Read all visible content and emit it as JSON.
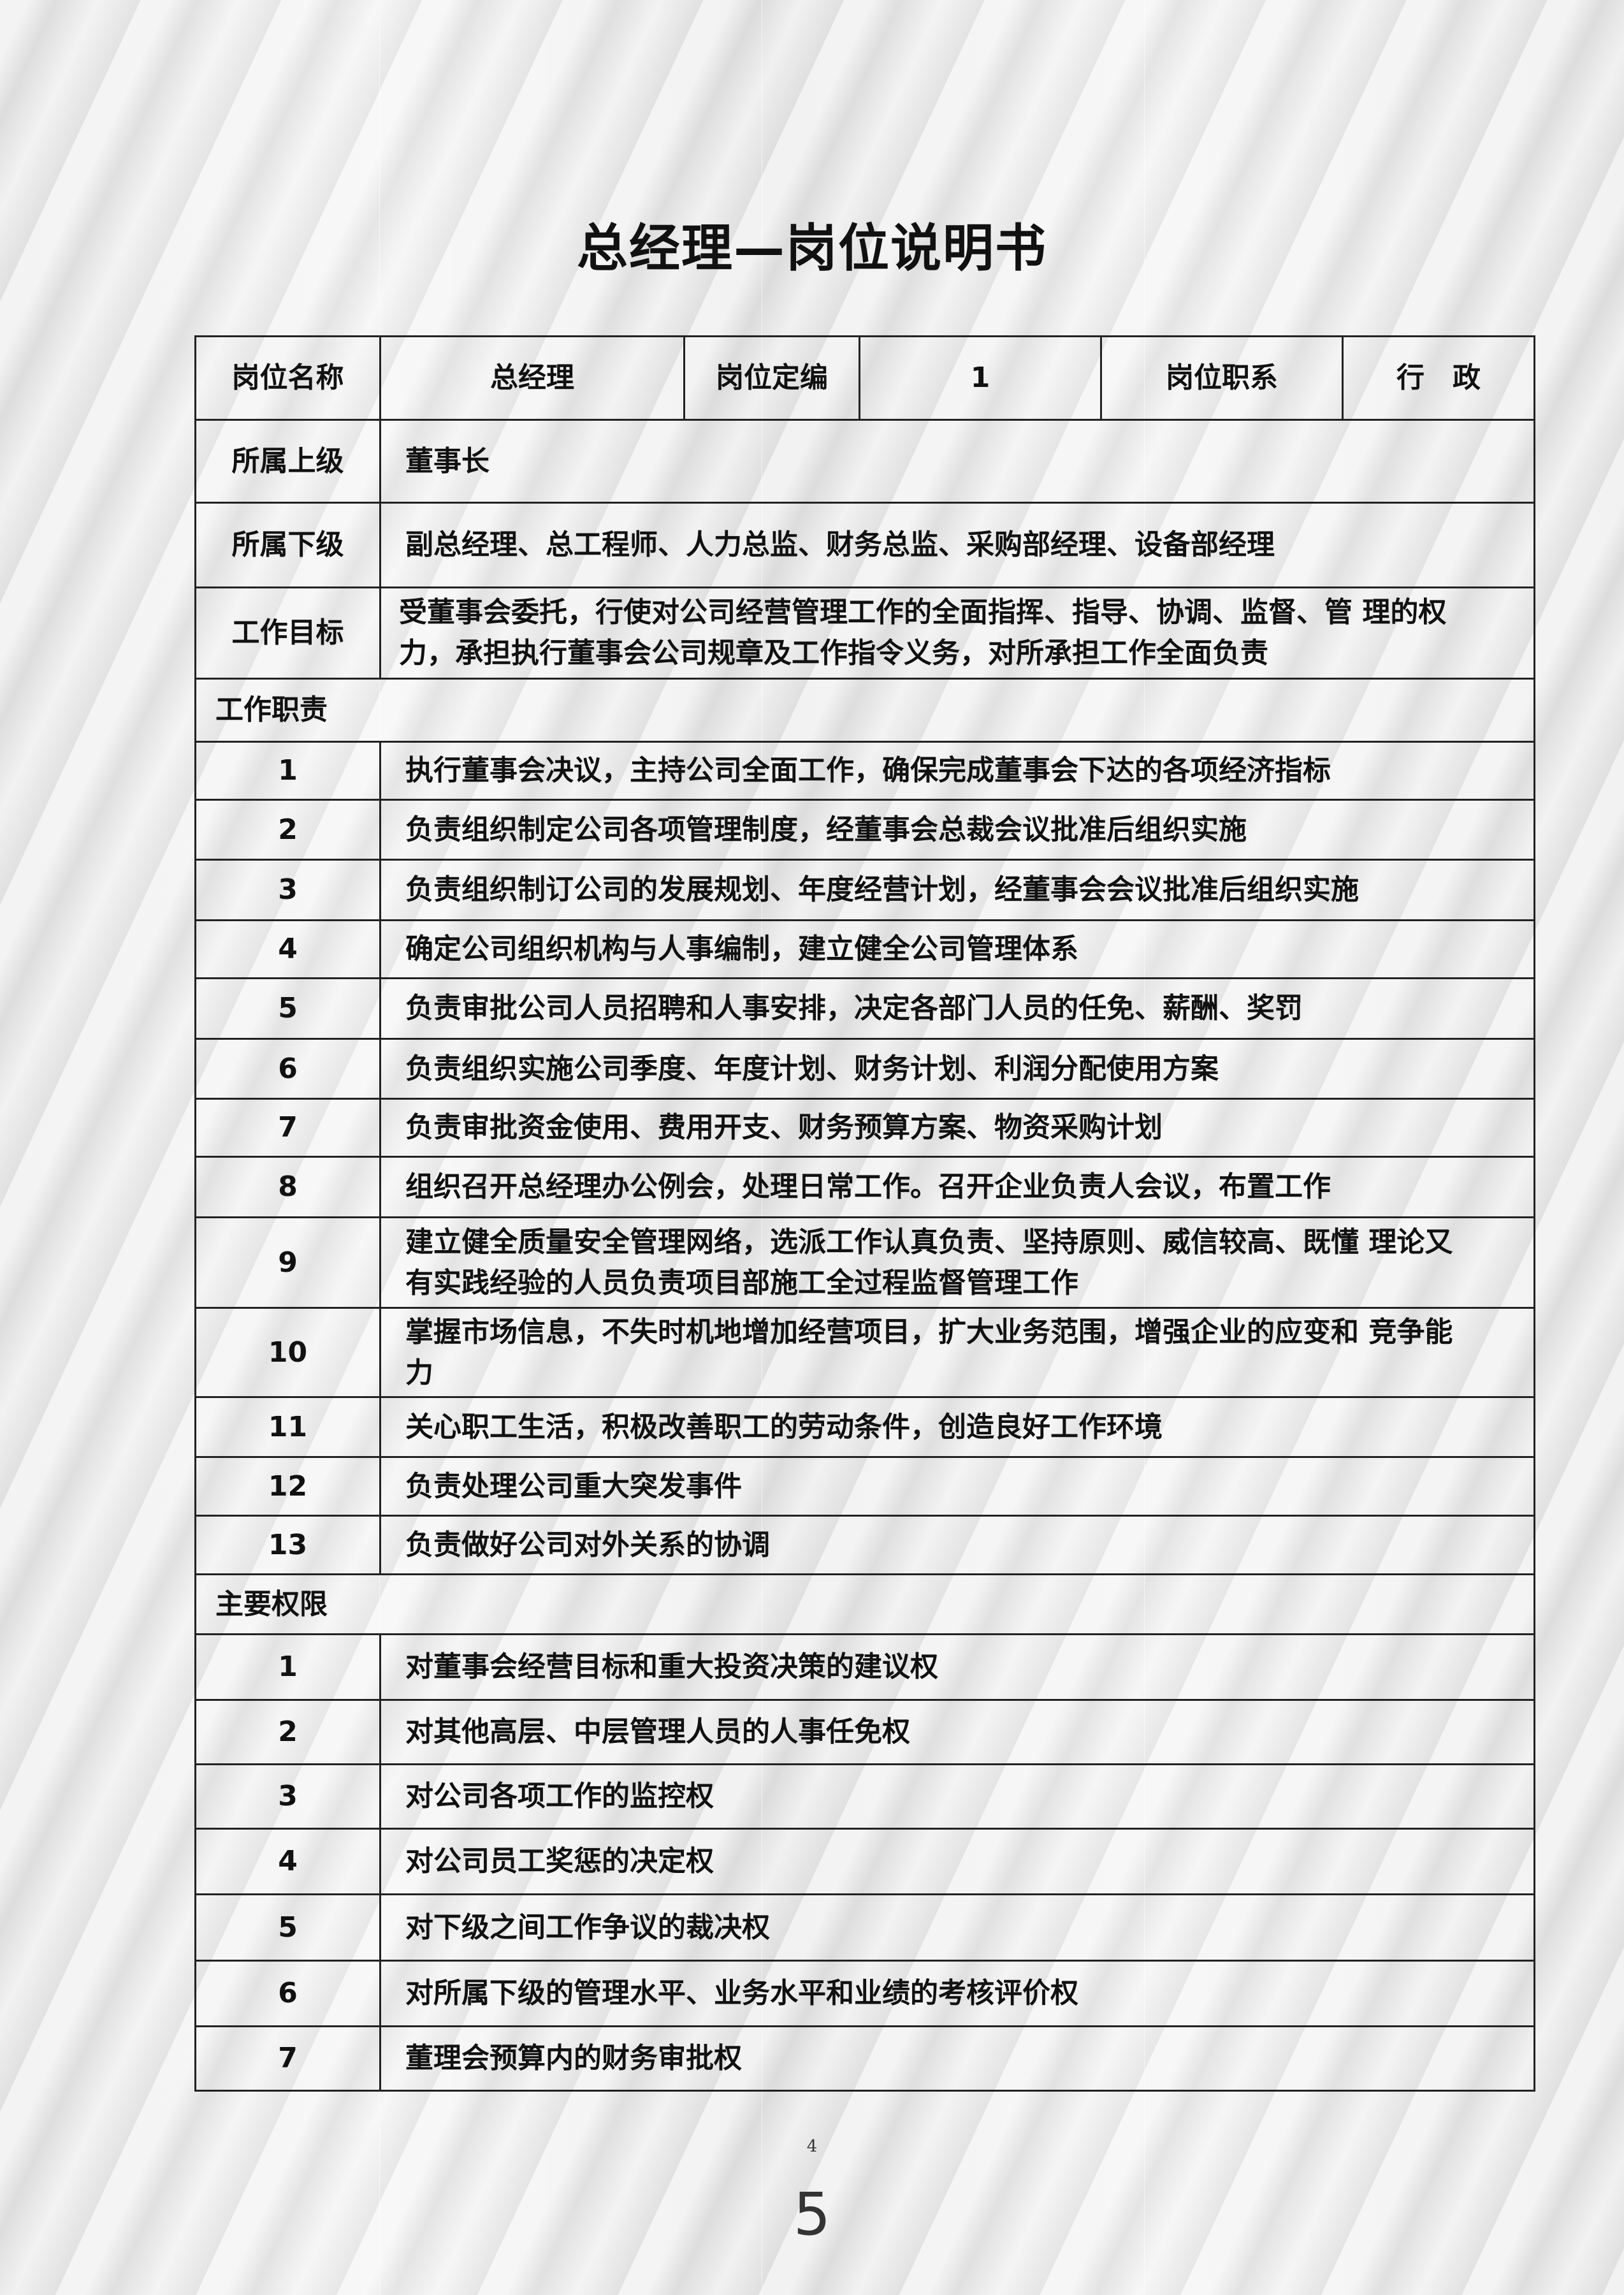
{
  "title": "总经理—岗位说明书",
  "header": {
    "name_label": "岗位名称",
    "name_value": "总经理",
    "quota_label": "岗位定编",
    "quota_value": "1",
    "series_label": "岗位职系",
    "series_value": "行　政"
  },
  "superior": {
    "label": "所属上级",
    "value": "董事长"
  },
  "subordinates": {
    "label": "所属下级",
    "value": "副总经理、总工程师、人力总监、财务总监、采购部经理、设备部经理"
  },
  "goal": {
    "label": "工作目标",
    "value": "受董事会委托，行使对公司经营管理工作的全面指挥、指导、协调、监督、管 理的权力，承担执行董事会公司规章及工作指令义务，对所承担工作全面负责"
  },
  "duties": {
    "label": "工作职责",
    "items": [
      {
        "no": "1",
        "text": "执行董事会决议，主持公司全面工作，确保完成董事会下达的各项经济指标"
      },
      {
        "no": "2",
        "text": "负责组织制定公司各项管理制度，经董事会总裁会议批准后组织实施"
      },
      {
        "no": "3",
        "text": "负责组织制订公司的发展规划、年度经营计划，经董事会会议批准后组织实施"
      },
      {
        "no": "4",
        "text": "确定公司组织机构与人事编制，建立健全公司管理体系"
      },
      {
        "no": "5",
        "text": "负责审批公司人员招聘和人事安排，决定各部门人员的任免、薪酬、奖罚"
      },
      {
        "no": "6",
        "text": "负责组织实施公司季度、年度计划、财务计划、利润分配使用方案"
      },
      {
        "no": "7",
        "text": "负责审批资金使用、费用开支、财务预算方案、物资采购计划"
      },
      {
        "no": "8",
        "text": "组织召开总经理办公例会，处理日常工作。召开企业负责人会议，布置工作"
      },
      {
        "no": "9",
        "text": "建立健全质量安全管理网络，选派工作认真负责、坚持原则、威信较高、既懂 理论又有实践经验的人员负责项目部施工全过程监督管理工作"
      },
      {
        "no": "10",
        "text": "掌握市场信息，不失时机地增加经营项目，扩大业务范围，增强企业的应变和 竞争能力"
      },
      {
        "no": "11",
        "text": "关心职工生活，积极改善职工的劳动条件，创造良好工作环境"
      },
      {
        "no": "12",
        "text": "负责处理公司重大突发事件"
      },
      {
        "no": "13",
        "text": "负责做好公司对外关系的协调"
      }
    ]
  },
  "authority": {
    "label": "主要权限",
    "items": [
      {
        "no": "1",
        "text": "对董事会经营目标和重大投资决策的建议权"
      },
      {
        "no": "2",
        "text": "对其他高层、中层管理人员的人事任免权"
      },
      {
        "no": "3",
        "text": "对公司各项工作的监控权"
      },
      {
        "no": "4",
        "text": "对公司员工奖惩的决定权"
      },
      {
        "no": "5",
        "text": "对下级之间工作争议的裁决权"
      },
      {
        "no": "6",
        "text": "对所属下级的管理水平、业务水平和业绩的考核评价权"
      },
      {
        "no": "7",
        "text": "董理会预算内的财务审批权"
      }
    ]
  },
  "footer": {
    "page_small": "4",
    "page_big": "5"
  }
}
